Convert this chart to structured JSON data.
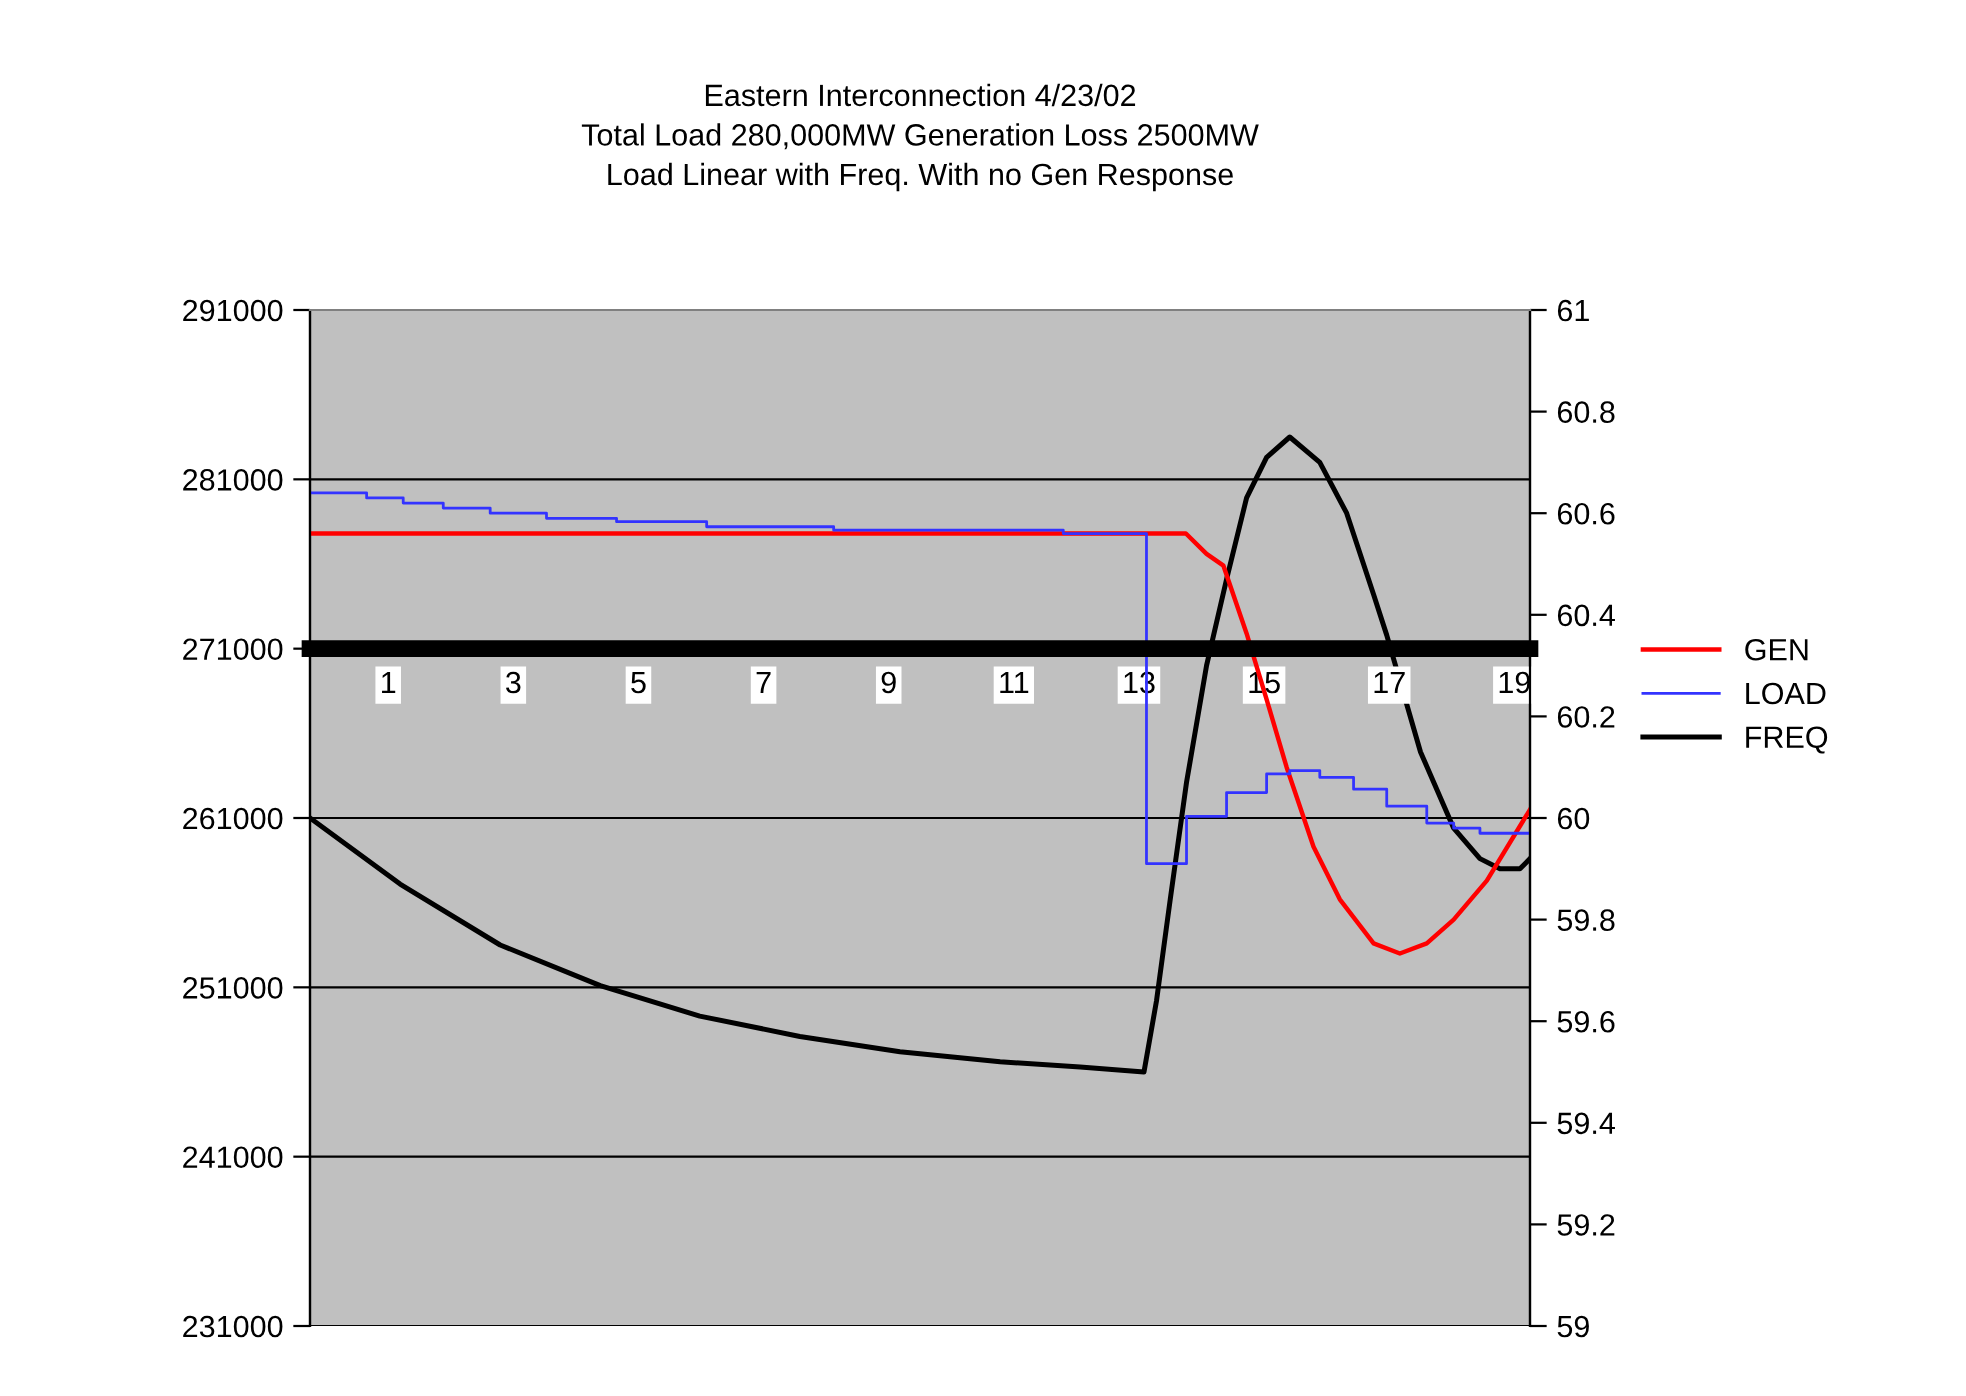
{
  "chart_data": {
    "type": "line",
    "title": "Eastern Interconnection 4/23/02\nTotal Load 280,000MW Generation Loss 2500MW\nLoad Linear with Freq. With no Gen Response",
    "xlim": [
      -0.25,
      19.25
    ],
    "xticks": [
      1,
      3,
      5,
      7,
      9,
      11,
      13,
      15,
      17,
      19
    ],
    "ylim": [
      231000,
      291000
    ],
    "yticks": [
      231000,
      241000,
      251000,
      261000,
      271000,
      281000,
      291000
    ],
    "y2lim": [
      59,
      61
    ],
    "y2ticks": [
      59,
      59.2,
      59.4,
      59.6,
      59.8,
      60,
      60.2,
      60.4,
      60.6,
      60.8,
      61
    ],
    "grid": "y",
    "legend": "right",
    "series": [
      {
        "name": "GEN",
        "color": "#ff0000",
        "x": [
          -0.25,
          13.75,
          14.08,
          14.35,
          14.72,
          15.04,
          15.36,
          15.79,
          16.21,
          16.75,
          17.17,
          17.6,
          18.03,
          18.56,
          19.25
        ],
        "values": [
          277800,
          277800,
          276600,
          275900,
          271900,
          268000,
          264000,
          259300,
          256200,
          253600,
          253000,
          253600,
          255000,
          257300,
          261500
        ]
      },
      {
        "name": "LOAD",
        "color": "#3333ff",
        "type": "step",
        "x": [
          -0.25,
          0.655,
          1.24,
          1.88,
          2.63,
          3.53,
          4.65,
          6.09,
          8.12,
          11.79,
          13.12,
          13.76,
          14.4,
          15.04,
          15.41,
          15.89,
          16.43,
          16.96,
          17.6,
          18.03,
          18.45,
          19.25
        ],
        "values": [
          280200,
          279900,
          279600,
          279300,
          279000,
          278700,
          278500,
          278200,
          278000,
          277800,
          258300,
          261100,
          262500,
          263600,
          263800,
          263400,
          262700,
          261700,
          260700,
          260400,
          260100,
          260100
        ]
      },
      {
        "name": "FREQ",
        "color": "#000000",
        "axis": "y2",
        "x": [
          -0.25,
          1.19,
          2.79,
          4.39,
          5.98,
          7.58,
          9.18,
          10.78,
          12.06,
          13.08,
          13.28,
          13.5,
          13.76,
          14.08,
          14.4,
          14.72,
          15.04,
          15.41,
          15.89,
          16.32,
          16.75,
          16.96,
          17.5,
          18.03,
          18.45,
          18.77,
          19.09,
          19.25
        ],
        "values": [
          60.0,
          59.87,
          59.75,
          59.67,
          59.61,
          59.57,
          59.54,
          59.52,
          59.51,
          59.5,
          59.64,
          59.84,
          60.07,
          60.3,
          60.47,
          60.63,
          60.71,
          60.75,
          60.7,
          60.6,
          60.44,
          60.36,
          60.13,
          59.98,
          59.92,
          59.9,
          59.9,
          59.92
        ]
      }
    ]
  }
}
